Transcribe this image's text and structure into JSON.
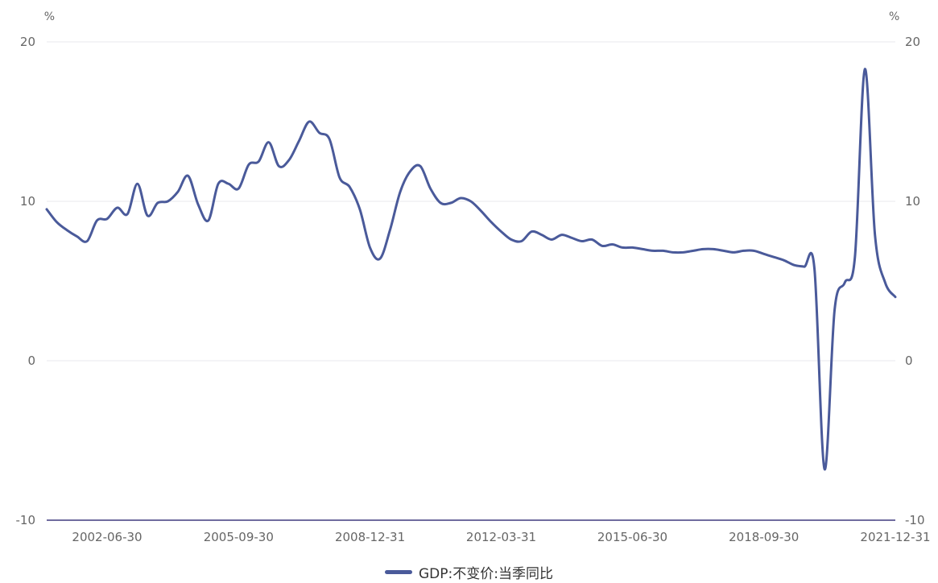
{
  "colors": {
    "series": "#4a5a9a",
    "grid": "#e9e9ee",
    "axis": "#6f6c9f",
    "text": "#666666"
  },
  "chart_data": {
    "type": "line",
    "title": "",
    "left_unit": "%",
    "right_unit": "%",
    "ylim": [
      -10,
      20
    ],
    "yticks": [
      -10,
      0,
      10,
      20
    ],
    "xlim": [
      "2000-12-31",
      "2021-12-31"
    ],
    "xticks": [
      "2002-06-30",
      "2005-09-30",
      "2008-12-31",
      "2012-03-31",
      "2015-06-30",
      "2018-09-30",
      "2021-12-31"
    ],
    "grid": true,
    "legend_position": "bottom",
    "series": [
      {
        "name": "GDP:不变价:当季同比",
        "x": [
          "2000-12-31",
          "2001-03-31",
          "2001-06-30",
          "2001-09-30",
          "2001-12-31",
          "2002-03-31",
          "2002-06-30",
          "2002-09-30",
          "2002-12-31",
          "2003-03-31",
          "2003-06-30",
          "2003-09-30",
          "2003-12-31",
          "2004-03-31",
          "2004-06-30",
          "2004-09-30",
          "2004-12-31",
          "2005-03-31",
          "2005-06-30",
          "2005-09-30",
          "2005-12-31",
          "2006-03-31",
          "2006-06-30",
          "2006-09-30",
          "2006-12-31",
          "2007-03-31",
          "2007-06-30",
          "2007-09-30",
          "2007-12-31",
          "2008-03-31",
          "2008-06-30",
          "2008-09-30",
          "2008-12-31",
          "2009-03-31",
          "2009-06-30",
          "2009-09-30",
          "2009-12-31",
          "2010-03-31",
          "2010-06-30",
          "2010-09-30",
          "2010-12-31",
          "2011-03-31",
          "2011-06-30",
          "2011-09-30",
          "2011-12-31",
          "2012-03-31",
          "2012-06-30",
          "2012-09-30",
          "2012-12-31",
          "2013-03-31",
          "2013-06-30",
          "2013-09-30",
          "2013-12-31",
          "2014-03-31",
          "2014-06-30",
          "2014-09-30",
          "2014-12-31",
          "2015-03-31",
          "2015-06-30",
          "2015-09-30",
          "2015-12-31",
          "2016-03-31",
          "2016-06-30",
          "2016-09-30",
          "2016-12-31",
          "2017-03-31",
          "2017-06-30",
          "2017-09-30",
          "2017-12-31",
          "2018-03-31",
          "2018-06-30",
          "2018-09-30",
          "2018-12-31",
          "2019-03-31",
          "2019-06-30",
          "2019-09-30",
          "2019-12-31",
          "2020-03-31",
          "2020-06-30",
          "2020-09-30",
          "2020-12-31",
          "2021-03-31",
          "2021-06-30",
          "2021-09-30",
          "2021-12-31"
        ],
        "values": [
          9.5,
          8.7,
          8.2,
          7.8,
          7.5,
          8.8,
          8.9,
          9.6,
          9.2,
          11.1,
          9.1,
          9.9,
          10.0,
          10.6,
          11.6,
          9.8,
          8.8,
          11.1,
          11.1,
          10.8,
          12.3,
          12.5,
          13.7,
          12.2,
          12.6,
          13.8,
          15.0,
          14.3,
          13.9,
          11.5,
          10.9,
          9.5,
          7.1,
          6.4,
          8.2,
          10.6,
          11.9,
          12.2,
          10.8,
          9.9,
          9.9,
          10.2,
          10.0,
          9.4,
          8.7,
          8.1,
          7.6,
          7.5,
          8.1,
          7.9,
          7.6,
          7.9,
          7.7,
          7.5,
          7.6,
          7.2,
          7.3,
          7.1,
          7.1,
          7.0,
          6.9,
          6.9,
          6.8,
          6.8,
          6.9,
          7.0,
          7.0,
          6.9,
          6.8,
          6.9,
          6.9,
          6.7,
          6.5,
          6.3,
          6.0,
          5.9,
          5.8,
          -6.8,
          3.2,
          4.9,
          6.5,
          18.3,
          7.9,
          4.9,
          4.0
        ]
      }
    ]
  }
}
